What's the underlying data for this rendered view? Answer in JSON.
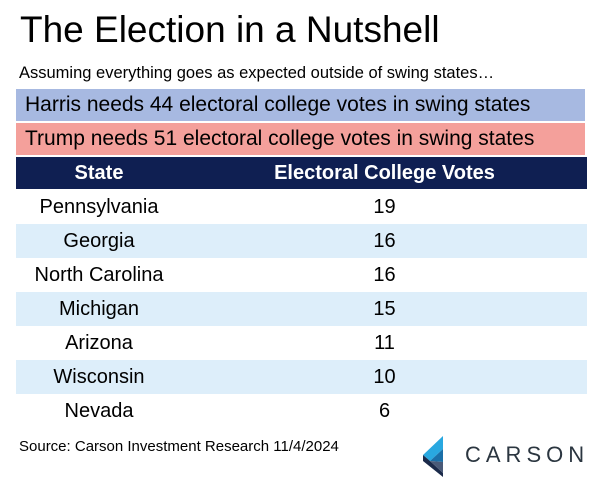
{
  "title": "The Election in a Nutshell",
  "subtitle": "Assuming everything goes as expected outside of swing states…",
  "banners": {
    "harris": "Harris needs 44 electoral college votes in swing states",
    "trump": "Trump needs 51 electoral college votes in swing states"
  },
  "colors": {
    "harris_banner": "#a7b9e1",
    "trump_banner": "#f4a09b",
    "header": "#0f1f52",
    "row_stripe": "#ddeefa",
    "logo_blue": "#29a8e0"
  },
  "chart_data": {
    "type": "table",
    "columns": [
      "State",
      "Electoral College Votes"
    ],
    "rows": [
      [
        "Pennsylvania",
        "19"
      ],
      [
        "Georgia",
        "16"
      ],
      [
        "North Carolina",
        "16"
      ],
      [
        "Michigan",
        "15"
      ],
      [
        "Arizona",
        "11"
      ],
      [
        "Wisconsin",
        "10"
      ],
      [
        "Nevada",
        "6"
      ]
    ]
  },
  "source": "Source: Carson Investment Research 11/4/2024",
  "logo": {
    "icon": "carson-logo-icon",
    "text": "CARSON"
  }
}
